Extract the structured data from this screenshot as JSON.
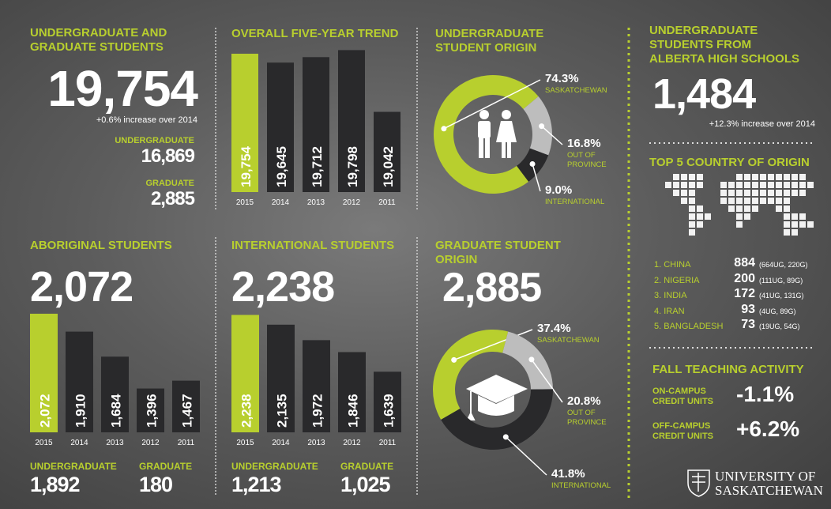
{
  "chart_data": [
    {
      "type": "bar",
      "title": "OVERALL FIVE-YEAR TREND",
      "categories": [
        "2015",
        "2014",
        "2013",
        "2012",
        "2011"
      ],
      "values": [
        19754,
        19645,
        19712,
        19798,
        19042
      ],
      "value_labels": [
        "19,754",
        "19,645",
        "19,712",
        "19,798",
        "19,042"
      ],
      "colors": [
        "#b8cf2e",
        "#29292b",
        "#29292b",
        "#29292b",
        "#29292b"
      ],
      "ylim": [
        18060,
        19860
      ]
    },
    {
      "type": "pie",
      "title": "UNDERGRADUATE STUDENT ORIGIN",
      "categories": [
        "SASKATCHEWAN",
        "OUT OF PROVINCE",
        "INTERNATIONAL"
      ],
      "values": [
        74.3,
        16.8,
        9.0
      ],
      "value_labels": [
        "74.3%",
        "16.8%",
        "9.0%"
      ],
      "colors": [
        "#b8cf2e",
        "#bdbdbd",
        "#29292b"
      ]
    },
    {
      "type": "bar",
      "title": "ABORIGINAL STUDENTS",
      "headline": "2,072",
      "categories": [
        "2015",
        "2014",
        "2013",
        "2012",
        "2011"
      ],
      "values": [
        2072,
        1910,
        1684,
        1396,
        1467
      ],
      "value_labels": [
        "2,072",
        "1,910",
        "1,684",
        "1,396",
        "1,467"
      ],
      "colors": [
        "#b8cf2e",
        "#29292b",
        "#29292b",
        "#29292b",
        "#29292b"
      ],
      "ylim": [
        1000,
        2100
      ],
      "breakdown": [
        {
          "label": "UNDERGRADUATE",
          "value": "1,892"
        },
        {
          "label": "GRADUATE",
          "value": "180"
        }
      ]
    },
    {
      "type": "bar",
      "title": "INTERNATIONAL STUDENTS",
      "headline": "2,238",
      "categories": [
        "2015",
        "2014",
        "2013",
        "2012",
        "2011"
      ],
      "values": [
        2238,
        2135,
        1972,
        1846,
        1639
      ],
      "value_labels": [
        "2,238",
        "2,135",
        "1,972",
        "1,846",
        "1,639"
      ],
      "colors": [
        "#b8cf2e",
        "#29292b",
        "#29292b",
        "#29292b",
        "#29292b"
      ],
      "ylim": [
        1000,
        2250
      ],
      "breakdown": [
        {
          "label": "UNDERGRADUATE",
          "value": "1,213"
        },
        {
          "label": "GRADUATE",
          "value": "1,025"
        }
      ]
    },
    {
      "type": "pie",
      "title": "GRADUATE STUDENT ORIGIN",
      "headline": "2,885",
      "categories": [
        "SASKATCHEWAN",
        "OUT OF PROVINCE",
        "INTERNATIONAL"
      ],
      "values": [
        37.4,
        20.8,
        41.8
      ],
      "value_labels": [
        "37.4%",
        "20.8%",
        "41.8%"
      ],
      "colors": [
        "#b8cf2e",
        "#bdbdbd",
        "#29292b"
      ]
    }
  ],
  "students": {
    "title": "UNDERGRADUATE AND GRADUATE STUDENTS",
    "total": "19,754",
    "change": "+0.6% increase over 2014",
    "breakdown": [
      {
        "label": "UNDERGRADUATE",
        "value": "16,869"
      },
      {
        "label": "GRADUATE",
        "value": "2,885"
      }
    ]
  },
  "alberta": {
    "title": "UNDERGRADUATE STUDENTS FROM ALBERTA HIGH SCHOOLS",
    "total": "1,484",
    "change": "+12.3% increase over 2014"
  },
  "countries": {
    "title": "TOP 5 COUNTRY OF ORIGIN",
    "rows": [
      {
        "name": "1. CHINA",
        "total": "884",
        "detail": "(664UG, 220G)"
      },
      {
        "name": "2. NIGERIA",
        "total": "200",
        "detail": "(111UG, 89G)"
      },
      {
        "name": "3. INDIA",
        "total": "172",
        "detail": "(41UG, 131G)"
      },
      {
        "name": "4. IRAN",
        "total": "93",
        "detail": "(4UG, 89G)"
      },
      {
        "name": "5. BANGLADESH",
        "total": "73",
        "detail": "(19UG, 54G)"
      }
    ]
  },
  "teaching": {
    "title": "FALL TEACHING ACTIVITY",
    "rows": [
      {
        "label": "ON-CAMPUS CREDIT UNITS",
        "value": "-1.1%"
      },
      {
        "label": "OFF-CAMPUS CREDIT UNITS",
        "value": "+6.2%"
      }
    ]
  },
  "logo": {
    "line1": "UNIVERSITY OF",
    "line2": "SASKATCHEWAN"
  }
}
